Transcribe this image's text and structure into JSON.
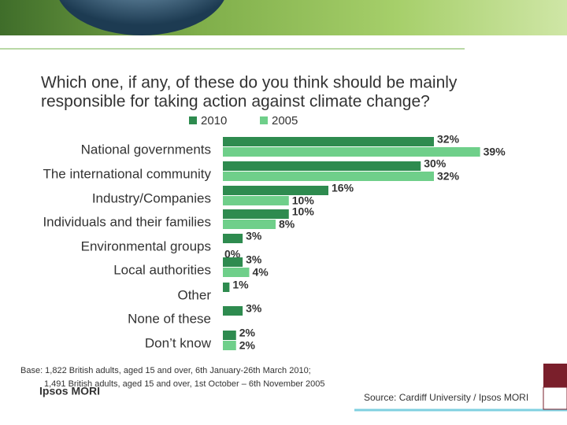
{
  "chart_data": {
    "type": "bar",
    "orientation": "horizontal",
    "title": [
      "Which one, if any, of these do you think should be mainly",
      "responsible for taking action against climate change?"
    ],
    "categories": [
      "National governments",
      "The international community",
      "Industry/Companies",
      "Individuals and their families",
      "Environmental groups",
      "Local authorities",
      "Other",
      "None of these",
      "Don’t know"
    ],
    "series": [
      {
        "name": "2010",
        "color": "#2e8b4f",
        "values": [
          32,
          30,
          16,
          10,
          3,
          3,
          1,
          3,
          2
        ],
        "value_labels": [
          "32%",
          "30%",
          "16%",
          "10%",
          "3%",
          "3%",
          "1%",
          "3%",
          "2%"
        ]
      },
      {
        "name": "2005",
        "color": "#6fcf8a",
        "values": [
          39,
          32,
          10,
          8,
          0,
          4,
          null,
          null,
          2
        ],
        "value_labels": [
          "39%",
          "32%",
          "10%",
          "8%",
          "0%",
          "4%",
          null,
          null,
          "2%"
        ]
      }
    ]
  },
  "footer": {
    "base": [
      "Base: 1,822 British adults, aged 15 and over, 6th January-26th March 2010;",
      "1,491 British adults, aged 15 and over, 1st October – 6th November 2005"
    ],
    "logo": "Ipsos MORI",
    "source": "Source: Cardiff University / Ipsos MORI"
  }
}
